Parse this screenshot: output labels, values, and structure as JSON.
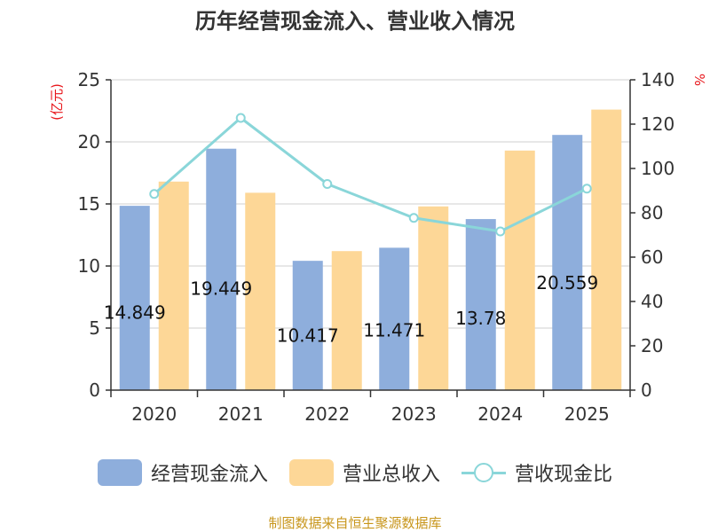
{
  "chart_data": {
    "type": "bar",
    "title": "历年经营现金流入、营业收入情况",
    "categories": [
      "2020",
      "2021",
      "2022",
      "2023",
      "2024",
      "2025"
    ],
    "left_axis": {
      "unit": "(亿元)",
      "ylim": [
        0,
        25
      ],
      "ticks": [
        "0",
        "5",
        "10",
        "15",
        "20",
        "25"
      ]
    },
    "right_axis": {
      "unit": "%",
      "ylim": [
        0,
        140
      ],
      "ticks": [
        "0",
        "20",
        "40",
        "60",
        "80",
        "100",
        "120",
        "140"
      ]
    },
    "series": [
      {
        "name": "经营现金流入",
        "type": "bar",
        "axis": "left",
        "color": "#8eaedc",
        "values": [
          14.849,
          19.449,
          10.417,
          11.471,
          13.78,
          20.559
        ],
        "data_labels": [
          "14.849",
          "19.449",
          "10.417",
          "11.471",
          "13.78",
          "20.559"
        ]
      },
      {
        "name": "营业总收入",
        "type": "bar",
        "axis": "left",
        "color": "#fdd797",
        "values": [
          16.8,
          15.9,
          11.2,
          14.8,
          19.3,
          22.6
        ]
      },
      {
        "name": "营收现金比",
        "type": "line",
        "axis": "right",
        "color": "#8ad6d9",
        "values": [
          88.5,
          122.8,
          93.0,
          77.7,
          71.6,
          90.9
        ]
      }
    ],
    "grid": true,
    "legend_position": "bottom"
  },
  "source_note": "制图数据来自恒生聚源数据库"
}
